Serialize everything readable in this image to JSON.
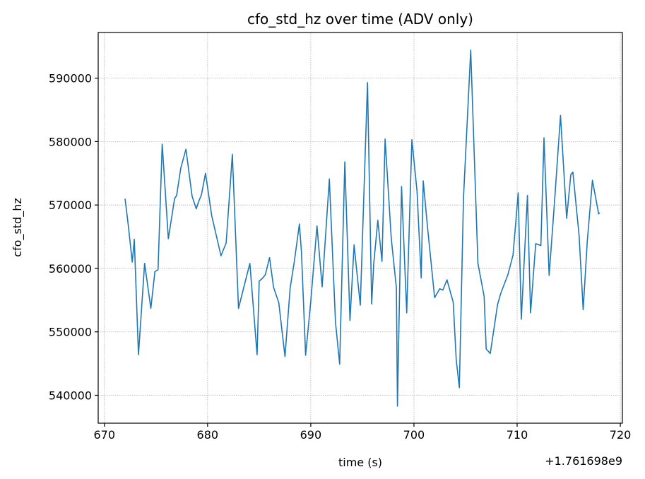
{
  "chart_data": {
    "type": "line",
    "title": "cfo_std_hz over time (ADV only)",
    "xlabel": "time (s)",
    "ylabel": "cfo_std_hz",
    "x_offset_label": "+1.761698e9",
    "xlim": [
      669.4,
      720.2
    ],
    "ylim": [
      535600,
      597200
    ],
    "xticks": [
      670,
      680,
      690,
      700,
      710,
      720
    ],
    "yticks": [
      540000,
      550000,
      560000,
      570000,
      580000,
      590000
    ],
    "xtick_labels": [
      "670",
      "680",
      "690",
      "700",
      "710",
      "720"
    ],
    "ytick_labels": [
      "540000",
      "550000",
      "560000",
      "570000",
      "580000",
      "590000"
    ],
    "grid": true,
    "line_color": "#1f77b4",
    "series": [
      {
        "x": [
          672.0,
          672.3,
          672.7,
          672.9,
          673.3,
          673.9,
          674.5,
          674.9,
          675.2,
          675.6,
          676.2,
          676.8,
          677.0,
          677.4,
          677.9,
          678.5,
          678.9,
          679.1,
          679.4,
          679.8,
          680.4,
          681.3,
          681.8,
          682.4,
          683.0,
          683.6,
          684.1,
          684.8,
          685.0,
          685.3,
          685.6,
          686.0,
          686.4,
          686.9,
          687.5,
          688.0,
          688.4,
          688.9,
          689.1,
          689.5,
          690.0,
          690.6,
          691.1,
          691.8,
          692.4,
          692.8,
          693.3,
          693.8,
          694.2,
          694.8,
          695.5,
          695.9,
          696.1,
          696.5,
          696.9,
          697.2,
          697.8,
          698.3,
          698.4,
          698.8,
          699.3,
          699.8,
          700.3,
          700.7,
          700.9,
          701.3,
          702.0,
          702.5,
          702.8,
          703.2,
          703.8,
          704.1,
          704.4,
          704.8,
          705.5,
          706.2,
          706.8,
          707.0,
          707.4,
          708.1,
          708.4,
          709.1,
          709.6,
          710.1,
          710.4,
          711.0,
          711.3,
          711.8,
          712.3,
          712.6,
          713.1,
          713.6,
          714.2,
          714.8,
          715.2,
          715.4,
          716.0,
          716.4,
          716.8,
          717.3,
          717.9,
          718.0
        ],
        "y": [
          571000,
          567000,
          561000,
          564600,
          546400,
          560800,
          553700,
          559500,
          559800,
          579600,
          564700,
          571000,
          571500,
          575800,
          578800,
          571400,
          569400,
          570400,
          571600,
          575000,
          568300,
          562000,
          564000,
          578000,
          553700,
          557600,
          560800,
          546400,
          558000,
          558400,
          559000,
          561700,
          557000,
          554600,
          546100,
          556900,
          561000,
          567000,
          562600,
          546300,
          554800,
          566700,
          557100,
          574100,
          551500,
          544900,
          576800,
          551800,
          563700,
          554200,
          589300,
          554400,
          560700,
          567600,
          561100,
          580400,
          564800,
          556900,
          538300,
          572900,
          553000,
          580300,
          572200,
          558500,
          573800,
          566800,
          555400,
          556800,
          556600,
          558200,
          554700,
          545600,
          541200,
          571200,
          594400,
          560800,
          555600,
          547300,
          546600,
          554300,
          556000,
          559000,
          562100,
          571900,
          552000,
          571500,
          553000,
          563900,
          563600,
          580600,
          558900,
          570000,
          584100,
          567900,
          574800,
          575200,
          565200,
          553500,
          564300,
          573900,
          568600,
          568800
        ]
      }
    ]
  }
}
